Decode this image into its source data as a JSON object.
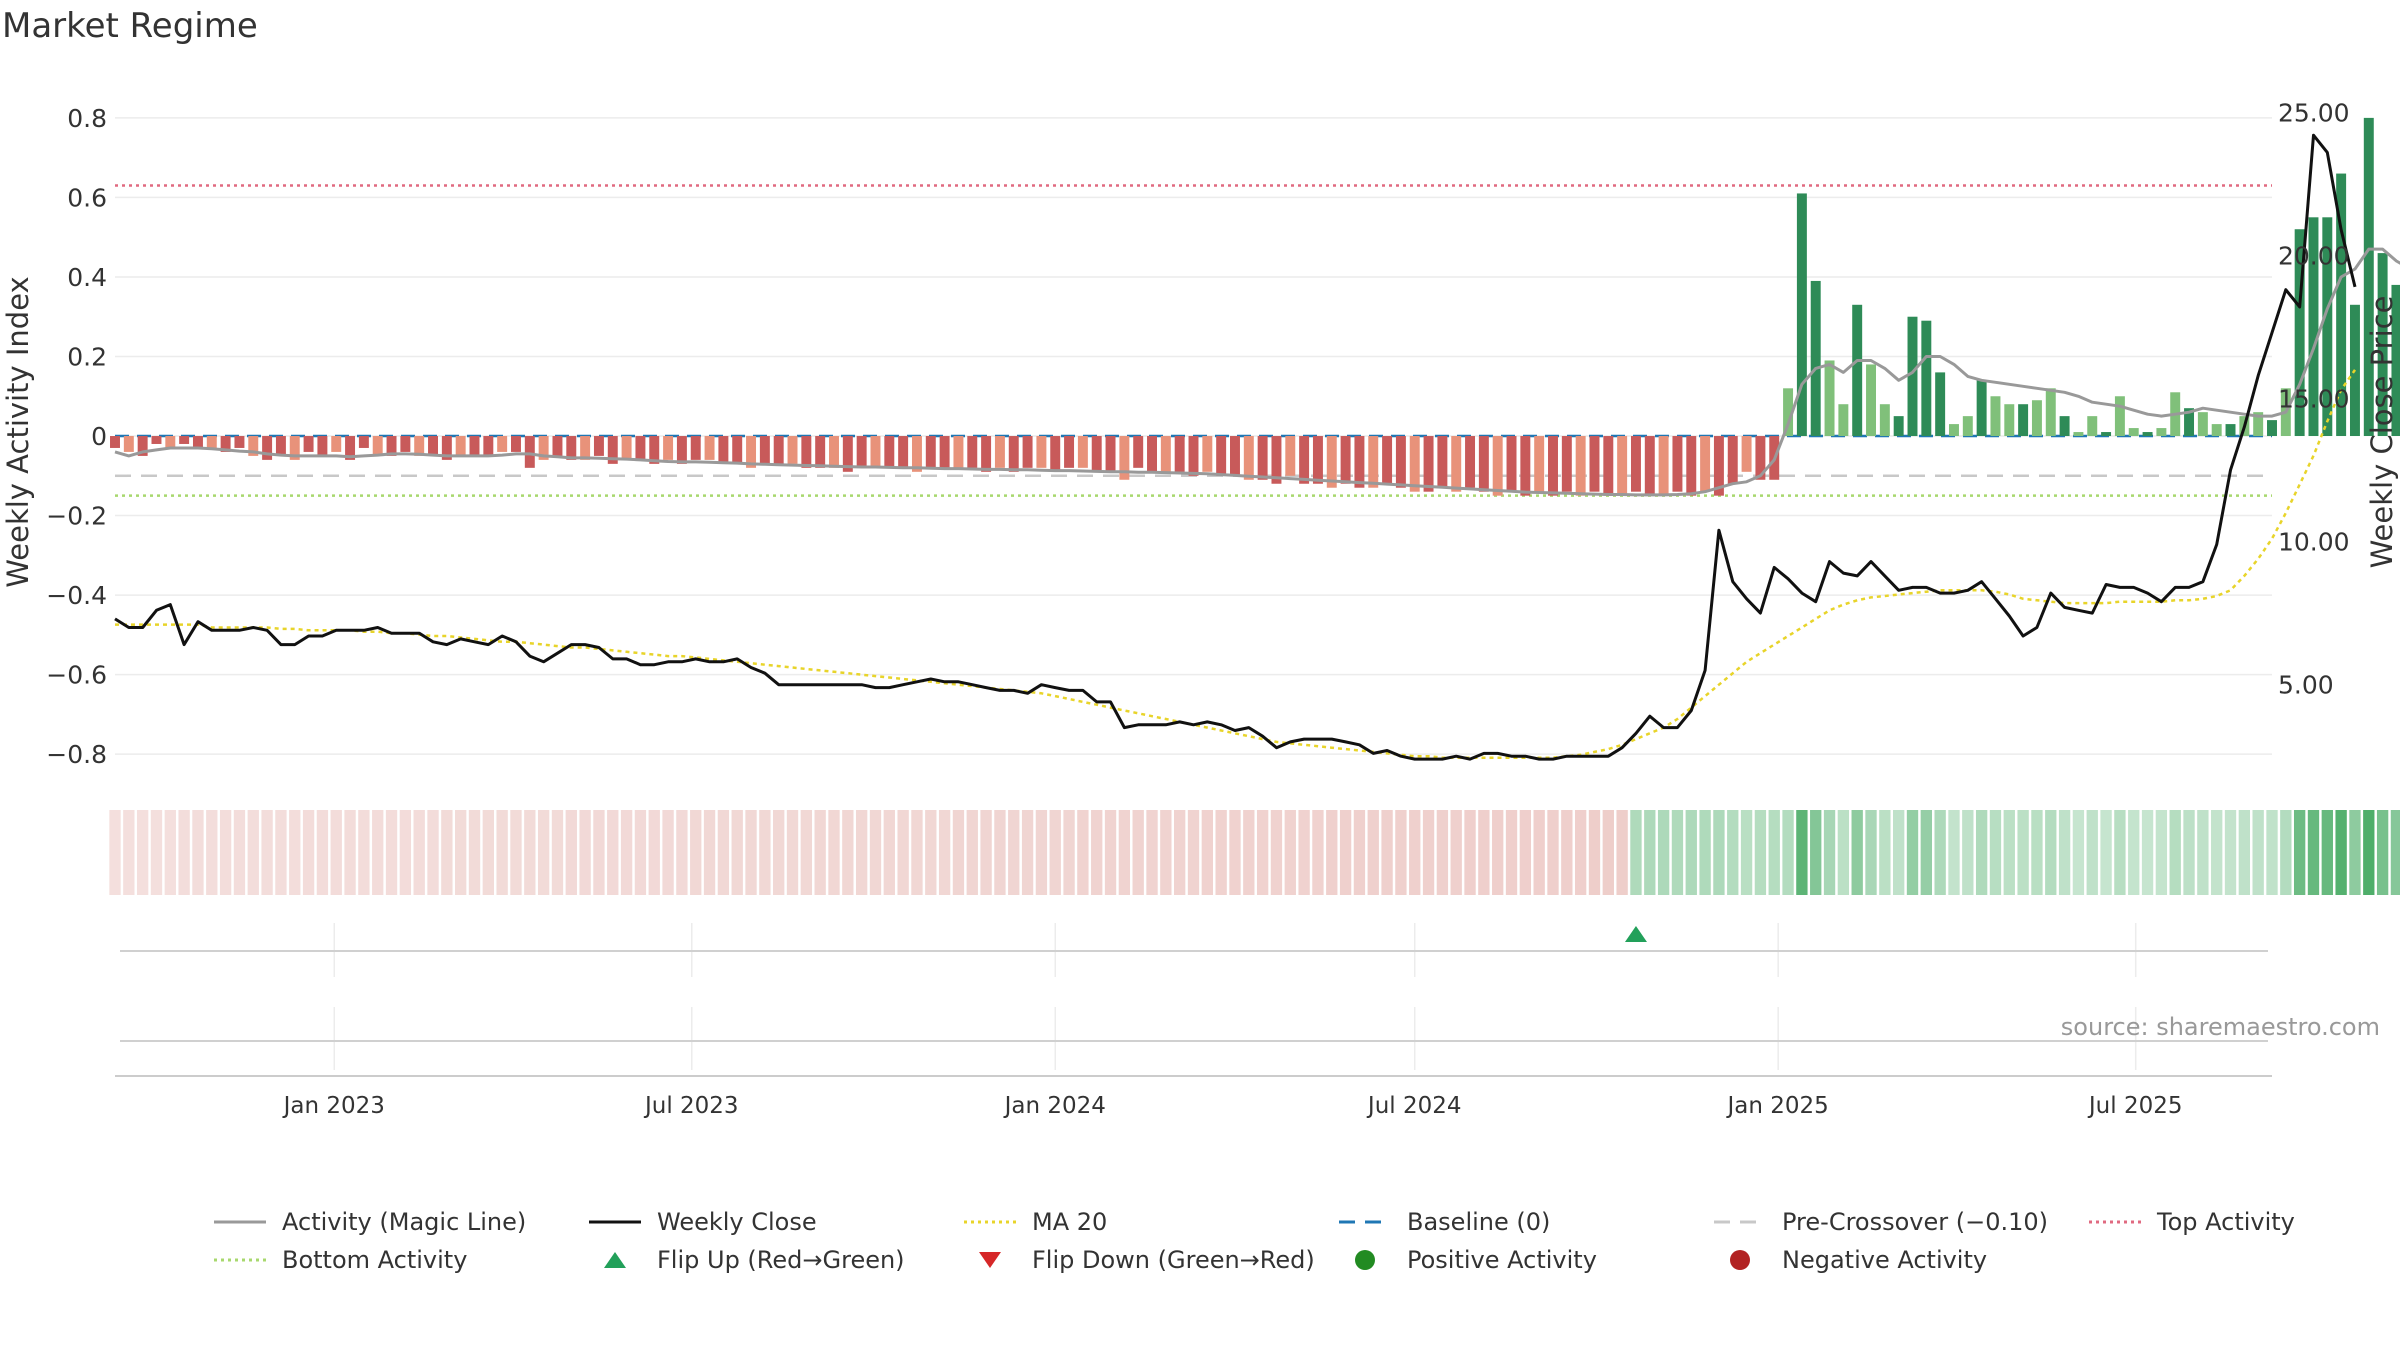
{
  "title": "Market Regime",
  "source": "source: sharemaestro.com",
  "colors": {
    "magic_line": "#999999",
    "close": "#111111",
    "ma20": "#e8d42a",
    "baseline": "#1f77b4",
    "pre_crossover": "#c8c8c8",
    "top_activity": "#e06a80",
    "bottom_activity": "#a8d86e",
    "pos_dark": "#2e8b57",
    "pos_light": "#80c07a",
    "neg_dark": "#c85a5a",
    "neg_light": "#e8927a",
    "flip_up": "#22a05a",
    "flip_down": "#d62728",
    "pos_marker": "#228b22",
    "neg_marker": "#b22222"
  },
  "legend": [
    {
      "label": "Activity (Magic Line)",
      "style": "solid",
      "color": "#999999"
    },
    {
      "label": "Weekly Close",
      "style": "solid",
      "color": "#111111"
    },
    {
      "label": "MA 20",
      "style": "dotted",
      "color": "#e8d42a"
    },
    {
      "label": "Baseline (0)",
      "style": "dashed",
      "color": "#1f77b4"
    },
    {
      "label": "Pre-Crossover (−0.10)",
      "style": "dashed",
      "color": "#c8c8c8"
    },
    {
      "label": "Top Activity",
      "style": "dotted",
      "color": "#e06a80"
    },
    {
      "label": "Bottom Activity",
      "style": "dotted",
      "color": "#a8d86e"
    },
    {
      "label": "Flip Up (Red→Green)",
      "style": "triangle-up",
      "color": "#22a05a"
    },
    {
      "label": "Flip Down (Green→Red)",
      "style": "triangle-down",
      "color": "#d62728"
    },
    {
      "label": "Positive Activity",
      "style": "circle",
      "color": "#228b22"
    },
    {
      "label": "Negative Activity",
      "style": "circle",
      "color": "#b22222"
    }
  ],
  "chart_data": {
    "type": "bar",
    "title": "Market Regime",
    "xlabel": "",
    "ylabel": "Weekly Activity Index",
    "ylabel_right": "Weekly Close Price",
    "x_range": [
      "2022-09-12",
      "2025-09-08"
    ],
    "x_ticks": [
      {
        "date": "2023-01-01",
        "label": "Jan 2023"
      },
      {
        "date": "2023-07-01",
        "label": "Jul 2023"
      },
      {
        "date": "2024-01-01",
        "label": "Jan 2024"
      },
      {
        "date": "2024-07-01",
        "label": "Jul 2024"
      },
      {
        "date": "2025-01-01",
        "label": "Jan 2025"
      },
      {
        "date": "2025-07-01",
        "label": "Jul 2025"
      }
    ],
    "ylim": [
      -0.87,
      0.85
    ],
    "y_ticks": [
      0.8,
      0.6,
      0.4,
      0.2,
      0,
      -0.2,
      -0.4,
      -0.6,
      -0.8
    ],
    "y_tick_labels": [
      "0.8",
      "0.6",
      "0.4",
      "0.2",
      "0",
      "−0.2",
      "−0.4",
      "−0.6",
      "−0.8"
    ],
    "ylim_right": [
      1.6,
      25.5
    ],
    "y_ticks_right": [
      25,
      20,
      15,
      10,
      5
    ],
    "y_tick_labels_right": [
      "25.00",
      "20.00",
      "15.00",
      "10.00",
      "5.00"
    ],
    "grid": true,
    "legend_position": "bottom",
    "reference_lines": {
      "top_activity": 0.63,
      "baseline": 0,
      "pre_crossover": -0.1,
      "bottom_activity": -0.15
    },
    "flip_up_dates": [
      "2024-10-21"
    ],
    "flip_down_dates": [],
    "activity_start": "2022-09-12",
    "activity": [
      -0.03,
      -0.04,
      -0.05,
      -0.02,
      -0.03,
      -0.02,
      -0.03,
      -0.03,
      -0.04,
      -0.03,
      -0.05,
      -0.06,
      -0.05,
      -0.06,
      -0.04,
      -0.05,
      -0.04,
      -0.06,
      -0.03,
      -0.05,
      -0.05,
      -0.04,
      -0.05,
      -0.05,
      -0.06,
      -0.05,
      -0.05,
      -0.05,
      -0.04,
      -0.04,
      -0.08,
      -0.06,
      -0.05,
      -0.06,
      -0.06,
      -0.05,
      -0.07,
      -0.06,
      -0.06,
      -0.07,
      -0.06,
      -0.07,
      -0.06,
      -0.06,
      -0.07,
      -0.07,
      -0.08,
      -0.07,
      -0.07,
      -0.07,
      -0.08,
      -0.08,
      -0.08,
      -0.09,
      -0.08,
      -0.08,
      -0.08,
      -0.08,
      -0.09,
      -0.08,
      -0.08,
      -0.08,
      -0.08,
      -0.09,
      -0.08,
      -0.09,
      -0.08,
      -0.08,
      -0.09,
      -0.08,
      -0.08,
      -0.09,
      -0.09,
      -0.11,
      -0.08,
      -0.09,
      -0.09,
      -0.09,
      -0.1,
      -0.09,
      -0.1,
      -0.1,
      -0.11,
      -0.11,
      -0.12,
      -0.1,
      -0.12,
      -0.12,
      -0.13,
      -0.12,
      -0.13,
      -0.13,
      -0.12,
      -0.13,
      -0.14,
      -0.14,
      -0.13,
      -0.14,
      -0.13,
      -0.14,
      -0.15,
      -0.14,
      -0.15,
      -0.14,
      -0.15,
      -0.14,
      -0.15,
      -0.14,
      -0.15,
      -0.15,
      -0.14,
      -0.15,
      -0.15,
      -0.14,
      -0.15,
      -0.14,
      -0.15,
      -0.12,
      -0.09,
      -0.11,
      -0.11,
      0.12,
      0.61,
      0.39,
      0.19,
      0.08,
      0.33,
      0.18,
      0.08,
      0.05,
      0.3,
      0.29,
      0.16,
      0.03,
      0.05,
      0.14,
      0.1,
      0.08,
      0.08,
      0.09,
      0.12,
      0.05,
      0.01,
      0.05,
      0.01,
      0.1,
      0.02,
      0.01,
      0.02,
      0.11,
      0.07,
      0.06,
      0.03,
      0.03,
      0.05,
      0.06,
      0.04,
      0.12,
      0.52,
      0.55,
      0.55,
      0.66,
      0.33,
      0.8,
      0.46,
      0.38,
      0.33
    ],
    "magic_line": [
      -0.04,
      -0.05,
      -0.04,
      -0.035,
      -0.03,
      -0.03,
      -0.03,
      -0.032,
      -0.035,
      -0.038,
      -0.04,
      -0.045,
      -0.048,
      -0.05,
      -0.05,
      -0.05,
      -0.05,
      -0.052,
      -0.05,
      -0.048,
      -0.045,
      -0.045,
      -0.046,
      -0.048,
      -0.05,
      -0.05,
      -0.05,
      -0.05,
      -0.048,
      -0.045,
      -0.045,
      -0.05,
      -0.052,
      -0.055,
      -0.055,
      -0.056,
      -0.057,
      -0.058,
      -0.06,
      -0.062,
      -0.064,
      -0.065,
      -0.065,
      -0.066,
      -0.067,
      -0.068,
      -0.07,
      -0.071,
      -0.072,
      -0.073,
      -0.074,
      -0.075,
      -0.076,
      -0.077,
      -0.078,
      -0.078,
      -0.079,
      -0.08,
      -0.08,
      -0.081,
      -0.082,
      -0.082,
      -0.083,
      -0.084,
      -0.084,
      -0.085,
      -0.085,
      -0.086,
      -0.087,
      -0.087,
      -0.088,
      -0.089,
      -0.09,
      -0.09,
      -0.091,
      -0.091,
      -0.092,
      -0.093,
      -0.094,
      -0.095,
      -0.097,
      -0.099,
      -0.101,
      -0.103,
      -0.105,
      -0.107,
      -0.109,
      -0.111,
      -0.113,
      -0.115,
      -0.117,
      -0.119,
      -0.121,
      -0.123,
      -0.125,
      -0.127,
      -0.129,
      -0.131,
      -0.133,
      -0.135,
      -0.137,
      -0.139,
      -0.141,
      -0.142,
      -0.143,
      -0.144,
      -0.145,
      -0.146,
      -0.147,
      -0.147,
      -0.148,
      -0.148,
      -0.148,
      -0.147,
      -0.145,
      -0.14,
      -0.13,
      -0.12,
      -0.115,
      -0.1,
      -0.06,
      0.03,
      0.13,
      0.17,
      0.18,
      0.16,
      0.19,
      0.19,
      0.17,
      0.14,
      0.16,
      0.2,
      0.2,
      0.18,
      0.15,
      0.14,
      0.135,
      0.13,
      0.125,
      0.12,
      0.115,
      0.11,
      0.1,
      0.085,
      0.08,
      0.075,
      0.065,
      0.055,
      0.05,
      0.055,
      0.06,
      0.07,
      0.065,
      0.06,
      0.055,
      0.05,
      0.05,
      0.06,
      0.13,
      0.22,
      0.32,
      0.4,
      0.42,
      0.47,
      0.47,
      0.44,
      0.42
    ],
    "close": [
      7.3,
      7.0,
      7.0,
      7.6,
      7.8,
      6.4,
      7.2,
      6.9,
      6.9,
      6.9,
      7.0,
      6.9,
      6.4,
      6.4,
      6.7,
      6.7,
      6.9,
      6.9,
      6.9,
      7.0,
      6.8,
      6.8,
      6.8,
      6.5,
      6.4,
      6.6,
      6.5,
      6.4,
      6.7,
      6.5,
      6.0,
      5.8,
      6.1,
      6.4,
      6.4,
      6.3,
      5.9,
      5.9,
      5.7,
      5.7,
      5.8,
      5.8,
      5.9,
      5.8,
      5.8,
      5.9,
      5.6,
      5.4,
      5.0,
      5.0,
      5.0,
      5.0,
      5.0,
      5.0,
      5.0,
      4.9,
      4.9,
      5.0,
      5.1,
      5.2,
      5.1,
      5.1,
      5.0,
      4.9,
      4.8,
      4.8,
      4.7,
      5.0,
      4.9,
      4.8,
      4.8,
      4.4,
      4.4,
      3.5,
      3.6,
      3.6,
      3.6,
      3.7,
      3.6,
      3.7,
      3.6,
      3.4,
      3.5,
      3.2,
      2.8,
      3.0,
      3.1,
      3.1,
      3.1,
      3.0,
      2.9,
      2.6,
      2.7,
      2.5,
      2.4,
      2.4,
      2.4,
      2.5,
      2.4,
      2.6,
      2.6,
      2.5,
      2.5,
      2.4,
      2.4,
      2.5,
      2.5,
      2.5,
      2.5,
      2.8,
      3.3,
      3.9,
      3.5,
      3.5,
      4.1,
      5.5,
      10.4,
      8.6,
      8.0,
      7.5,
      9.1,
      8.7,
      8.2,
      7.9,
      9.3,
      8.9,
      8.8,
      9.3,
      8.8,
      8.3,
      8.4,
      8.4,
      8.2,
      8.2,
      8.3,
      8.6,
      8.0,
      7.4,
      6.7,
      7.0,
      8.2,
      7.7,
      7.6,
      7.5,
      8.5,
      8.4,
      8.4,
      8.2,
      7.9,
      8.4,
      8.4,
      8.6,
      9.9,
      12.5,
      14.0,
      15.8,
      17.3,
      18.8,
      18.2,
      24.2,
      23.6,
      20.9,
      18.9
    ],
    "ma20": [
      7.1,
      7.1,
      7.1,
      7.1,
      7.1,
      7.1,
      7.1,
      7.0,
      7.0,
      7.0,
      7.0,
      7.0,
      6.95,
      6.95,
      6.9,
      6.9,
      6.9,
      6.9,
      6.85,
      6.85,
      6.8,
      6.8,
      6.75,
      6.7,
      6.7,
      6.65,
      6.6,
      6.55,
      6.5,
      6.5,
      6.45,
      6.4,
      6.35,
      6.3,
      6.3,
      6.25,
      6.2,
      6.15,
      6.1,
      6.05,
      6.0,
      6.0,
      5.95,
      5.9,
      5.85,
      5.8,
      5.75,
      5.7,
      5.65,
      5.6,
      5.55,
      5.5,
      5.45,
      5.4,
      5.35,
      5.3,
      5.25,
      5.2,
      5.15,
      5.1,
      5.05,
      5.0,
      4.95,
      4.9,
      4.85,
      4.8,
      4.75,
      4.7,
      4.6,
      4.5,
      4.4,
      4.3,
      4.2,
      4.1,
      4.0,
      3.9,
      3.8,
      3.7,
      3.6,
      3.5,
      3.4,
      3.3,
      3.2,
      3.1,
      3.0,
      2.95,
      2.9,
      2.85,
      2.8,
      2.75,
      2.7,
      2.65,
      2.6,
      2.55,
      2.5,
      2.5,
      2.45,
      2.45,
      2.45,
      2.45,
      2.45,
      2.45,
      2.45,
      2.45,
      2.45,
      2.5,
      2.55,
      2.65,
      2.75,
      2.9,
      3.1,
      3.3,
      3.5,
      3.8,
      4.2,
      4.6,
      5.0,
      5.4,
      5.8,
      6.1,
      6.4,
      6.7,
      7.0,
      7.3,
      7.6,
      7.8,
      7.95,
      8.05,
      8.1,
      8.15,
      8.2,
      8.25,
      8.3,
      8.3,
      8.3,
      8.3,
      8.25,
      8.15,
      8.0,
      7.95,
      7.9,
      7.85,
      7.85,
      7.85,
      7.85,
      7.9,
      7.9,
      7.9,
      7.9,
      7.95,
      7.95,
      8.0,
      8.1,
      8.3,
      8.8,
      9.4,
      10.1,
      11.0,
      12.0,
      13.0,
      14.2,
      15.3,
      16.0
    ],
    "regime_strip": "red before 2024-10-21, green from 2024-10-21"
  }
}
